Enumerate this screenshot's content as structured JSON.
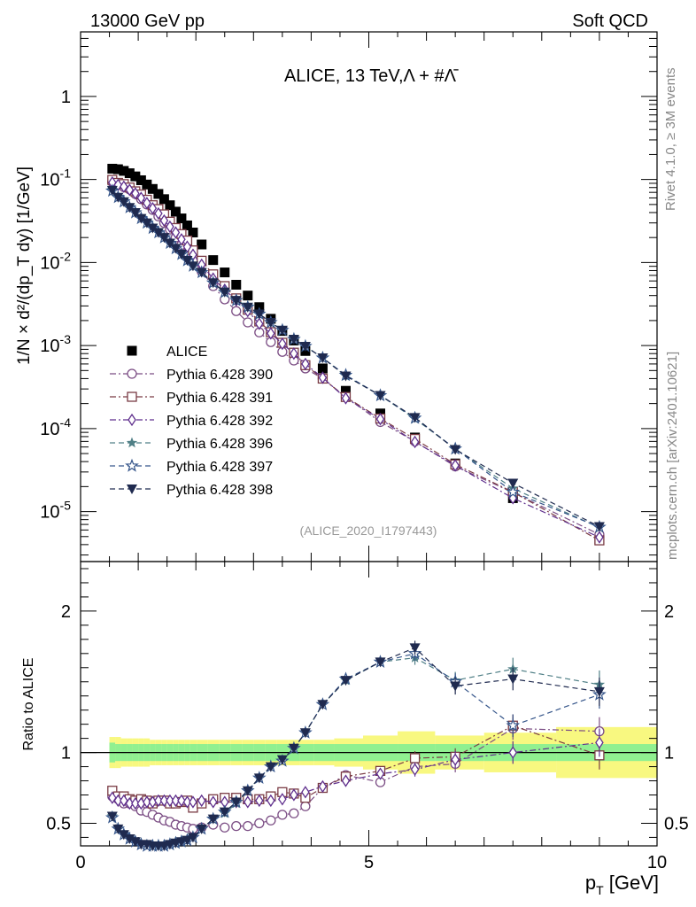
{
  "header": {
    "left": "13000 GeV pp",
    "right": "Soft QCD"
  },
  "side_labels": {
    "rivet": "Rivet 4.1.0, ≥ 3M events",
    "mcplots": "mcplots.cern.ch [arXiv:2401.10621]"
  },
  "chart_data": [
    {
      "type": "scatter",
      "panel": "main",
      "title": "ALICE, 13 TeV,Λ + #Λ̄",
      "watermark": "(ALICE_2020_I1797443)",
      "ylabel": "1/N × d²/(dp_T dy) [1/GeV]",
      "yscale": "log",
      "ylim": [
        2.5e-06,
        6.0
      ],
      "xlim": [
        0,
        10
      ],
      "y_tick_labels": [
        "10^-5",
        "10^-4",
        "10^-3",
        "10^-2",
        "10^-1",
        "1"
      ],
      "legend_position": "middle-left",
      "x": [
        0.55,
        0.65,
        0.75,
        0.85,
        0.95,
        1.05,
        1.15,
        1.25,
        1.35,
        1.45,
        1.55,
        1.65,
        1.75,
        1.85,
        1.95,
        2.1,
        2.3,
        2.5,
        2.7,
        2.9,
        3.1,
        3.3,
        3.5,
        3.7,
        3.9,
        4.2,
        4.6,
        5.2,
        5.8,
        6.5,
        7.5,
        9.0
      ],
      "series": [
        {
          "name": "ALICE",
          "color": "#000000",
          "marker": "filled-square",
          "values": [
            0.135,
            0.133,
            0.127,
            0.119,
            0.109,
            0.098,
            0.087,
            0.077,
            0.067,
            0.058,
            0.049,
            0.041,
            0.034,
            0.028,
            0.023,
            0.0165,
            0.0107,
            0.0076,
            0.0054,
            0.004,
            0.0029,
            0.0021,
            0.0015,
            0.00115,
            0.00086,
            0.00053,
            0.000285,
            0.000152,
            7.8e-05,
            3.8e-05,
            1.45e-05,
            4.6e-06
          ]
        },
        {
          "name": "Pythia 6.428 390",
          "color": "#7b4d84",
          "marker": "open-circle",
          "line": "dash-dot",
          "values": [
            0.093,
            0.089,
            0.081,
            0.076,
            0.067,
            0.058,
            0.05,
            0.043,
            0.036,
            0.03,
            0.025,
            0.02,
            0.0163,
            0.0132,
            0.0105,
            0.0078,
            0.0052,
            0.0036,
            0.0026,
            0.0019,
            0.00144,
            0.0011,
            0.00084,
            0.00066,
            0.00053,
            0.0004,
            0.00024,
            0.00012,
            7e-05,
            3.5e-05,
            1.7e-05,
            5.3e-06
          ]
        },
        {
          "name": "Pythia 6.428 391",
          "color": "#7a3b44",
          "marker": "open-square",
          "line": "dash-dot",
          "values": [
            0.099,
            0.091,
            0.088,
            0.08,
            0.072,
            0.066,
            0.057,
            0.049,
            0.044,
            0.038,
            0.031,
            0.026,
            0.022,
            0.0184,
            0.014,
            0.0105,
            0.0072,
            0.0052,
            0.0037,
            0.0027,
            0.00195,
            0.00145,
            0.00108,
            0.00082,
            0.00058,
            0.0004,
            0.00024,
            0.000132,
            7.5e-05,
            3.7e-05,
            1.72e-05,
            4.5e-06
          ]
        },
        {
          "name": "Pythia 6.428 392",
          "color": "#5f2f8d",
          "marker": "open-diamond",
          "line": "dash-dot",
          "values": [
            0.092,
            0.086,
            0.082,
            0.075,
            0.068,
            0.06,
            0.052,
            0.045,
            0.039,
            0.032,
            0.027,
            0.023,
            0.019,
            0.0155,
            0.0124,
            0.0094,
            0.0064,
            0.0047,
            0.0035,
            0.0026,
            0.00183,
            0.0014,
            0.00105,
            0.0008,
            0.0006,
            0.00041,
            0.000232,
            0.00013,
            6.9e-05,
            3.6e-05,
            1.45e-05,
            4.9e-06
          ]
        },
        {
          "name": "Pythia 6.428 396",
          "color": "#4f7f86",
          "marker": "filled-star",
          "line": "dash",
          "values": [
            0.075,
            0.062,
            0.054,
            0.046,
            0.04,
            0.035,
            0.031,
            0.026,
            0.023,
            0.02,
            0.0172,
            0.015,
            0.0125,
            0.0106,
            0.0092,
            0.0077,
            0.0057,
            0.0043,
            0.0035,
            0.003,
            0.0024,
            0.0019,
            0.00152,
            0.00119,
            0.00098,
            0.00071,
            0.00043,
            0.00025,
            0.000131,
            5.7e-05,
            1.9e-05,
            6.4e-06
          ]
        },
        {
          "name": "Pythia 6.428 397",
          "color": "#35558a",
          "marker": "open-star",
          "line": "dash",
          "values": [
            0.073,
            0.061,
            0.054,
            0.046,
            0.04,
            0.034,
            0.03,
            0.026,
            0.023,
            0.02,
            0.0171,
            0.0148,
            0.0126,
            0.0106,
            0.0091,
            0.0076,
            0.0057,
            0.0044,
            0.0035,
            0.0029,
            0.0024,
            0.0019,
            0.00153,
            0.00119,
            0.00098,
            0.00071,
            0.00044,
            0.00025,
            0.000134,
            5.7e-05,
            1.72e-05,
            6.5e-06
          ]
        },
        {
          "name": "Pythia 6.428 398",
          "color": "#1f2a4f",
          "marker": "filled-triangle-down",
          "line": "dash",
          "values": [
            0.074,
            0.061,
            0.054,
            0.046,
            0.04,
            0.034,
            0.03,
            0.026,
            0.023,
            0.02,
            0.0171,
            0.0148,
            0.0126,
            0.0106,
            0.0091,
            0.0076,
            0.0057,
            0.0044,
            0.0035,
            0.0029,
            0.0024,
            0.0019,
            0.00153,
            0.00119,
            0.00098,
            0.00071,
            0.00043,
            0.00025,
            0.000136,
            5.6e-05,
            2.2e-05,
            6.6e-06
          ]
        }
      ]
    },
    {
      "type": "scatter",
      "panel": "ratio",
      "ylabel": "Ratio to ALICE",
      "xlabel": "p_T [GeV]",
      "xlim": [
        0,
        10
      ],
      "ylim": [
        0.34,
        2.35
      ],
      "x_ticks": [
        0,
        5,
        10
      ],
      "y_ticks": [
        0.5,
        1,
        2
      ],
      "reference_line": 1.0,
      "bands": {
        "green": {
          "color": "#90f090",
          "half_width": [
            0.07,
            0.06,
            0.06,
            0.06,
            0.06,
            0.06,
            0.06,
            0.06,
            0.06,
            0.06,
            0.06,
            0.06,
            0.06,
            0.06,
            0.06,
            0.06,
            0.06,
            0.06,
            0.06,
            0.06,
            0.06,
            0.06,
            0.06,
            0.06,
            0.06,
            0.06,
            0.06,
            0.06,
            0.06,
            0.06,
            0.06,
            0.06
          ]
        },
        "yellow": {
          "color": "#f8f880",
          "half_width": [
            0.11,
            0.11,
            0.1,
            0.1,
            0.1,
            0.1,
            0.1,
            0.09,
            0.09,
            0.09,
            0.09,
            0.09,
            0.09,
            0.09,
            0.09,
            0.09,
            0.09,
            0.09,
            0.09,
            0.09,
            0.09,
            0.09,
            0.09,
            0.09,
            0.09,
            0.09,
            0.1,
            0.12,
            0.15,
            0.12,
            0.14,
            0.18
          ]
        }
      },
      "series": [
        {
          "name": "Pythia 6.428 390",
          "values": [
            0.69,
            0.67,
            0.64,
            0.64,
            0.62,
            0.59,
            0.58,
            0.56,
            0.54,
            0.52,
            0.51,
            0.49,
            0.48,
            0.47,
            0.46,
            0.47,
            0.49,
            0.47,
            0.48,
            0.48,
            0.5,
            0.52,
            0.56,
            0.57,
            0.62,
            0.75,
            0.84,
            0.79,
            0.9,
            0.92,
            1.17,
            1.15
          ],
          "errors": [
            0.01,
            0.01,
            0.01,
            0.01,
            0.01,
            0.01,
            0.01,
            0.01,
            0.01,
            0.01,
            0.01,
            0.01,
            0.01,
            0.01,
            0.01,
            0.01,
            0.01,
            0.01,
            0.01,
            0.01,
            0.01,
            0.01,
            0.01,
            0.01,
            0.01,
            0.02,
            0.02,
            0.03,
            0.05,
            0.06,
            0.08,
            0.1
          ]
        },
        {
          "name": "Pythia 6.428 391",
          "values": [
            0.73,
            0.69,
            0.69,
            0.67,
            0.66,
            0.67,
            0.66,
            0.64,
            0.66,
            0.66,
            0.64,
            0.64,
            0.65,
            0.66,
            0.61,
            0.64,
            0.67,
            0.68,
            0.68,
            0.67,
            0.67,
            0.69,
            0.72,
            0.71,
            0.68,
            0.75,
            0.83,
            0.87,
            0.96,
            0.97,
            1.19,
            0.98
          ],
          "errors": [
            0.01,
            0.01,
            0.01,
            0.01,
            0.01,
            0.01,
            0.01,
            0.01,
            0.01,
            0.01,
            0.01,
            0.01,
            0.01,
            0.01,
            0.01,
            0.01,
            0.01,
            0.01,
            0.01,
            0.01,
            0.01,
            0.01,
            0.01,
            0.01,
            0.01,
            0.02,
            0.02,
            0.03,
            0.05,
            0.06,
            0.08,
            0.1
          ]
        },
        {
          "name": "Pythia 6.428 392",
          "values": [
            0.68,
            0.66,
            0.66,
            0.64,
            0.64,
            0.64,
            0.65,
            0.65,
            0.66,
            0.66,
            0.66,
            0.66,
            0.66,
            0.65,
            0.65,
            0.66,
            0.65,
            0.65,
            0.65,
            0.65,
            0.66,
            0.66,
            0.67,
            0.7,
            0.72,
            0.76,
            0.8,
            0.85,
            0.88,
            0.95,
            1.0,
            1.07
          ],
          "errors": [
            0.01,
            0.01,
            0.01,
            0.01,
            0.01,
            0.01,
            0.01,
            0.01,
            0.01,
            0.01,
            0.01,
            0.01,
            0.01,
            0.01,
            0.01,
            0.01,
            0.01,
            0.01,
            0.01,
            0.01,
            0.01,
            0.01,
            0.01,
            0.01,
            0.01,
            0.02,
            0.02,
            0.03,
            0.05,
            0.06,
            0.08,
            0.1
          ]
        },
        {
          "name": "Pythia 6.428 396",
          "values": [
            0.55,
            0.46,
            0.42,
            0.39,
            0.37,
            0.36,
            0.35,
            0.34,
            0.34,
            0.34,
            0.35,
            0.37,
            0.37,
            0.38,
            0.4,
            0.46,
            0.53,
            0.57,
            0.64,
            0.73,
            0.82,
            0.9,
            0.94,
            1.03,
            1.14,
            1.34,
            1.51,
            1.64,
            1.67,
            1.51,
            1.59,
            1.48
          ],
          "errors": [
            0.01,
            0.01,
            0.01,
            0.01,
            0.01,
            0.01,
            0.01,
            0.01,
            0.01,
            0.01,
            0.01,
            0.01,
            0.01,
            0.01,
            0.01,
            0.01,
            0.01,
            0.01,
            0.01,
            0.01,
            0.01,
            0.01,
            0.01,
            0.01,
            0.01,
            0.02,
            0.02,
            0.03,
            0.05,
            0.06,
            0.08,
            0.1
          ]
        },
        {
          "name": "Pythia 6.428 397",
          "values": [
            0.54,
            0.46,
            0.42,
            0.39,
            0.37,
            0.35,
            0.34,
            0.34,
            0.34,
            0.34,
            0.35,
            0.36,
            0.37,
            0.38,
            0.4,
            0.46,
            0.53,
            0.58,
            0.65,
            0.73,
            0.82,
            0.9,
            0.94,
            1.03,
            1.14,
            1.34,
            1.52,
            1.64,
            1.7,
            1.5,
            1.19,
            1.41
          ],
          "errors": [
            0.01,
            0.01,
            0.01,
            0.01,
            0.01,
            0.01,
            0.01,
            0.01,
            0.01,
            0.01,
            0.01,
            0.01,
            0.01,
            0.01,
            0.01,
            0.01,
            0.01,
            0.01,
            0.01,
            0.01,
            0.01,
            0.01,
            0.01,
            0.01,
            0.01,
            0.02,
            0.02,
            0.03,
            0.05,
            0.06,
            0.08,
            0.1
          ]
        },
        {
          "name": "Pythia 6.428 398",
          "values": [
            0.55,
            0.46,
            0.42,
            0.39,
            0.37,
            0.35,
            0.35,
            0.34,
            0.34,
            0.34,
            0.35,
            0.36,
            0.37,
            0.38,
            0.4,
            0.46,
            0.53,
            0.58,
            0.65,
            0.73,
            0.82,
            0.9,
            0.95,
            1.03,
            1.14,
            1.34,
            1.51,
            1.64,
            1.74,
            1.47,
            1.52,
            1.43
          ],
          "errors": [
            0.01,
            0.01,
            0.01,
            0.01,
            0.01,
            0.01,
            0.01,
            0.01,
            0.01,
            0.01,
            0.01,
            0.01,
            0.01,
            0.01,
            0.01,
            0.01,
            0.01,
            0.01,
            0.01,
            0.01,
            0.01,
            0.01,
            0.01,
            0.01,
            0.01,
            0.02,
            0.02,
            0.03,
            0.05,
            0.06,
            0.08,
            0.1
          ]
        }
      ]
    }
  ]
}
